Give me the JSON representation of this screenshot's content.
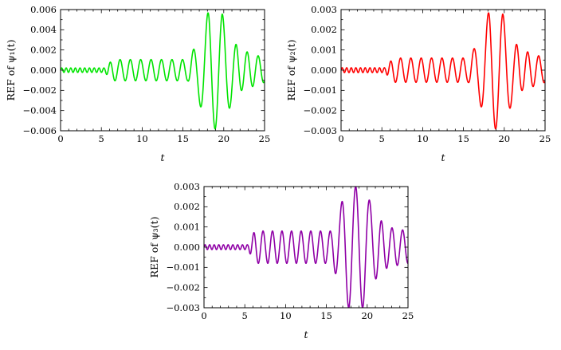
{
  "page": {
    "background": "#ffffff"
  },
  "chart_data": [
    {
      "type": "line",
      "title": "",
      "ylabel": "REF of ψ₁(t)",
      "xlabel": "t",
      "color": "#00e400",
      "grid": false,
      "legend": null,
      "xlim": [
        0,
        25
      ],
      "ylim": [
        -0.006,
        0.006
      ],
      "xtick_values": [
        0,
        5,
        10,
        15,
        20,
        25
      ],
      "xtick_labels": [
        "0",
        "5",
        "10",
        "15",
        "20",
        "25"
      ],
      "x_minor_step": 1,
      "ytick_values": [
        -0.006,
        -0.004,
        -0.002,
        0,
        0.002,
        0.004,
        0.006
      ],
      "ytick_labels": [
        "−0.006",
        "−0.004",
        "−0.002",
        "0.000",
        "0.002",
        "0.004",
        "0.006"
      ],
      "y_minor_step": 0.001,
      "signal": {
        "envelope": [
          [
            0,
            0.00022
          ],
          [
            5.4,
            0.00022
          ],
          [
            6.4,
            0.00105
          ],
          [
            15.6,
            0.00105
          ],
          [
            16.8,
            0.0028
          ],
          [
            18.2,
            0.006
          ],
          [
            19.8,
            0.0056
          ],
          [
            21.2,
            0.0028
          ],
          [
            22.2,
            0.002
          ],
          [
            25,
            0.0012
          ]
        ],
        "period": [
          [
            0,
            0.55
          ],
          [
            5.4,
            0.6
          ],
          [
            6.4,
            1.25
          ],
          [
            15.8,
            1.3
          ],
          [
            16.8,
            1.8
          ],
          [
            20.6,
            1.8
          ],
          [
            21.6,
            1.35
          ],
          [
            25,
            1.35
          ]
        ],
        "phase0": 0
      }
    },
    {
      "type": "line",
      "title": "",
      "ylabel": "REF of ψ₂(t)",
      "xlabel": "t",
      "color": "#ff0000",
      "grid": false,
      "legend": null,
      "xlim": [
        0,
        25
      ],
      "ylim": [
        -0.003,
        0.003
      ],
      "xtick_values": [
        0,
        5,
        10,
        15,
        20,
        25
      ],
      "xtick_labels": [
        "0",
        "5",
        "10",
        "15",
        "20",
        "25"
      ],
      "x_minor_step": 1,
      "ytick_values": [
        -0.003,
        -0.002,
        -0.001,
        0,
        0.001,
        0.002,
        0.003
      ],
      "ytick_labels": [
        "−0.003",
        "−0.002",
        "−0.001",
        "0.000",
        "0.001",
        "0.002",
        "0.003"
      ],
      "y_minor_step": 0.0005,
      "signal": {
        "envelope": [
          [
            0,
            0.00012
          ],
          [
            5.4,
            0.00012
          ],
          [
            6.4,
            0.0006
          ],
          [
            15.6,
            0.0006
          ],
          [
            16.8,
            0.0014
          ],
          [
            18.2,
            0.003
          ],
          [
            19.8,
            0.0028
          ],
          [
            21.2,
            0.0014
          ],
          [
            22.2,
            0.001
          ],
          [
            25,
            0.0006
          ]
        ],
        "period": [
          [
            0,
            0.55
          ],
          [
            5.4,
            0.6
          ],
          [
            6.4,
            1.25
          ],
          [
            15.8,
            1.3
          ],
          [
            16.8,
            1.8
          ],
          [
            20.6,
            1.8
          ],
          [
            21.6,
            1.35
          ],
          [
            25,
            1.35
          ]
        ],
        "phase0": 0
      }
    },
    {
      "type": "line",
      "title": "",
      "ylabel": "REF of ψ₃(t)",
      "xlabel": "t",
      "color": "#8f00a6",
      "grid": false,
      "legend": null,
      "xlim": [
        0,
        25
      ],
      "ylim": [
        -0.003,
        0.003
      ],
      "xtick_values": [
        0,
        5,
        10,
        15,
        20,
        25
      ],
      "xtick_labels": [
        "0",
        "5",
        "10",
        "15",
        "20",
        "25"
      ],
      "x_minor_step": 1,
      "ytick_values": [
        -0.003,
        -0.002,
        -0.001,
        0,
        0.001,
        0.002,
        0.003
      ],
      "ytick_labels": [
        "−0.003",
        "−0.002",
        "−0.001",
        "0.000",
        "0.001",
        "0.002",
        "0.003"
      ],
      "y_minor_step": 0.0005,
      "signal": {
        "envelope": [
          [
            0,
            0.00012
          ],
          [
            5.4,
            0.00012
          ],
          [
            6.2,
            0.0008
          ],
          [
            15.6,
            0.0008
          ],
          [
            16.6,
            0.0018
          ],
          [
            17.4,
            0.003
          ],
          [
            19.6,
            0.003
          ],
          [
            21,
            0.0016
          ],
          [
            22.5,
            0.001
          ],
          [
            25,
            0.0008
          ]
        ],
        "period": [
          [
            0,
            0.55
          ],
          [
            5.4,
            0.6
          ],
          [
            6.2,
            1.15
          ],
          [
            15.8,
            1.2
          ],
          [
            16.6,
            1.7
          ],
          [
            20.4,
            1.7
          ],
          [
            21.4,
            1.3
          ],
          [
            25,
            1.3
          ]
        ],
        "phase0": 0
      }
    }
  ]
}
